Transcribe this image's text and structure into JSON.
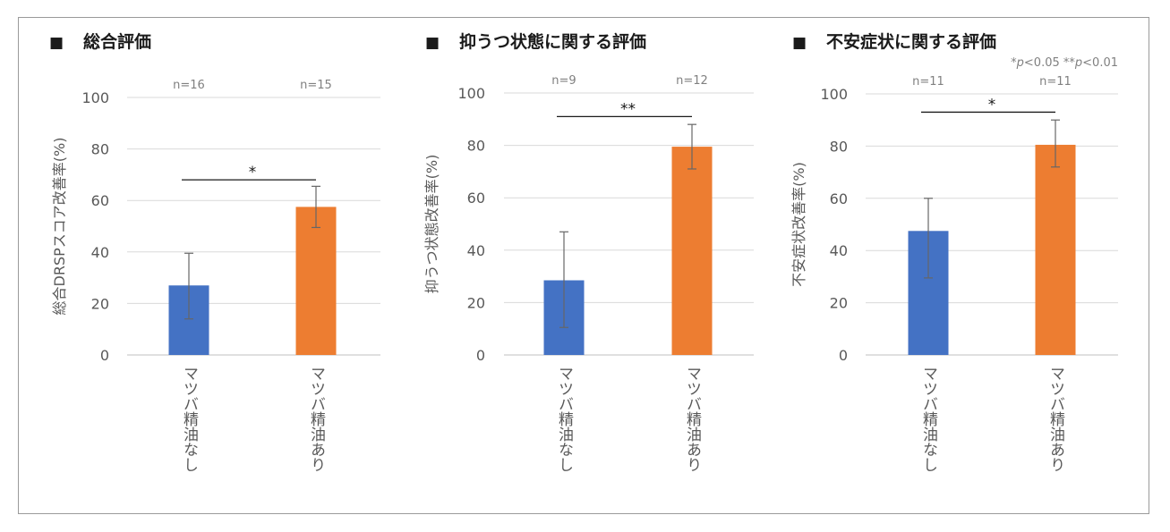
{
  "pvalue_note": {
    "star1": "*",
    "p1": "p",
    "t1": "<0.05",
    "star2": "**",
    "p2": "p",
    "t2": "<0.01"
  },
  "chart_data": [
    {
      "type": "bar",
      "title": "総合評価",
      "title_marker": "■",
      "ylabel": "総合DRSPスコア改善率(%)",
      "categories": [
        "マツバ精油なし",
        "マツバ精油あり"
      ],
      "values": [
        27,
        57.5
      ],
      "errors": [
        [
          13,
          12.5
        ],
        [
          8,
          8
        ]
      ],
      "n_labels": [
        "n=16",
        "n=15"
      ],
      "significance": "*",
      "sig_y": 68,
      "ylim": [
        0,
        100
      ],
      "yticks": [
        0,
        20,
        40,
        60,
        80,
        100
      ],
      "colors": [
        "#4472c4",
        "#ed7d31"
      ],
      "grid": true
    },
    {
      "type": "bar",
      "title": "抑うつ状態に関する評価",
      "title_marker": "■",
      "ylabel": "抑うつ状態改善率(%)",
      "categories": [
        "マツバ精油なし",
        "マツバ精油あり"
      ],
      "values": [
        28.5,
        79.5
      ],
      "errors": [
        [
          18,
          18.5
        ],
        [
          8.5,
          8.5
        ]
      ],
      "n_labels": [
        "n=9",
        "n=12"
      ],
      "significance": "**",
      "sig_y": 91,
      "ylim": [
        0,
        100
      ],
      "yticks": [
        0,
        20,
        40,
        60,
        80,
        100
      ],
      "colors": [
        "#4472c4",
        "#ed7d31"
      ],
      "grid": true
    },
    {
      "type": "bar",
      "title": "不安症状に関する評価",
      "title_marker": "■",
      "ylabel": "不安症状改善率(%)",
      "categories": [
        "マツバ精油なし",
        "マツバ精油あり"
      ],
      "values": [
        47.5,
        80.5
      ],
      "errors": [
        [
          18,
          12.5
        ],
        [
          8.5,
          9.5
        ]
      ],
      "n_labels": [
        "n=11",
        "n=11"
      ],
      "significance": "*",
      "sig_y": 93,
      "ylim": [
        0,
        100
      ],
      "yticks": [
        0,
        20,
        40,
        60,
        80,
        100
      ],
      "colors": [
        "#4472c4",
        "#ed7d31"
      ],
      "grid": true
    }
  ]
}
